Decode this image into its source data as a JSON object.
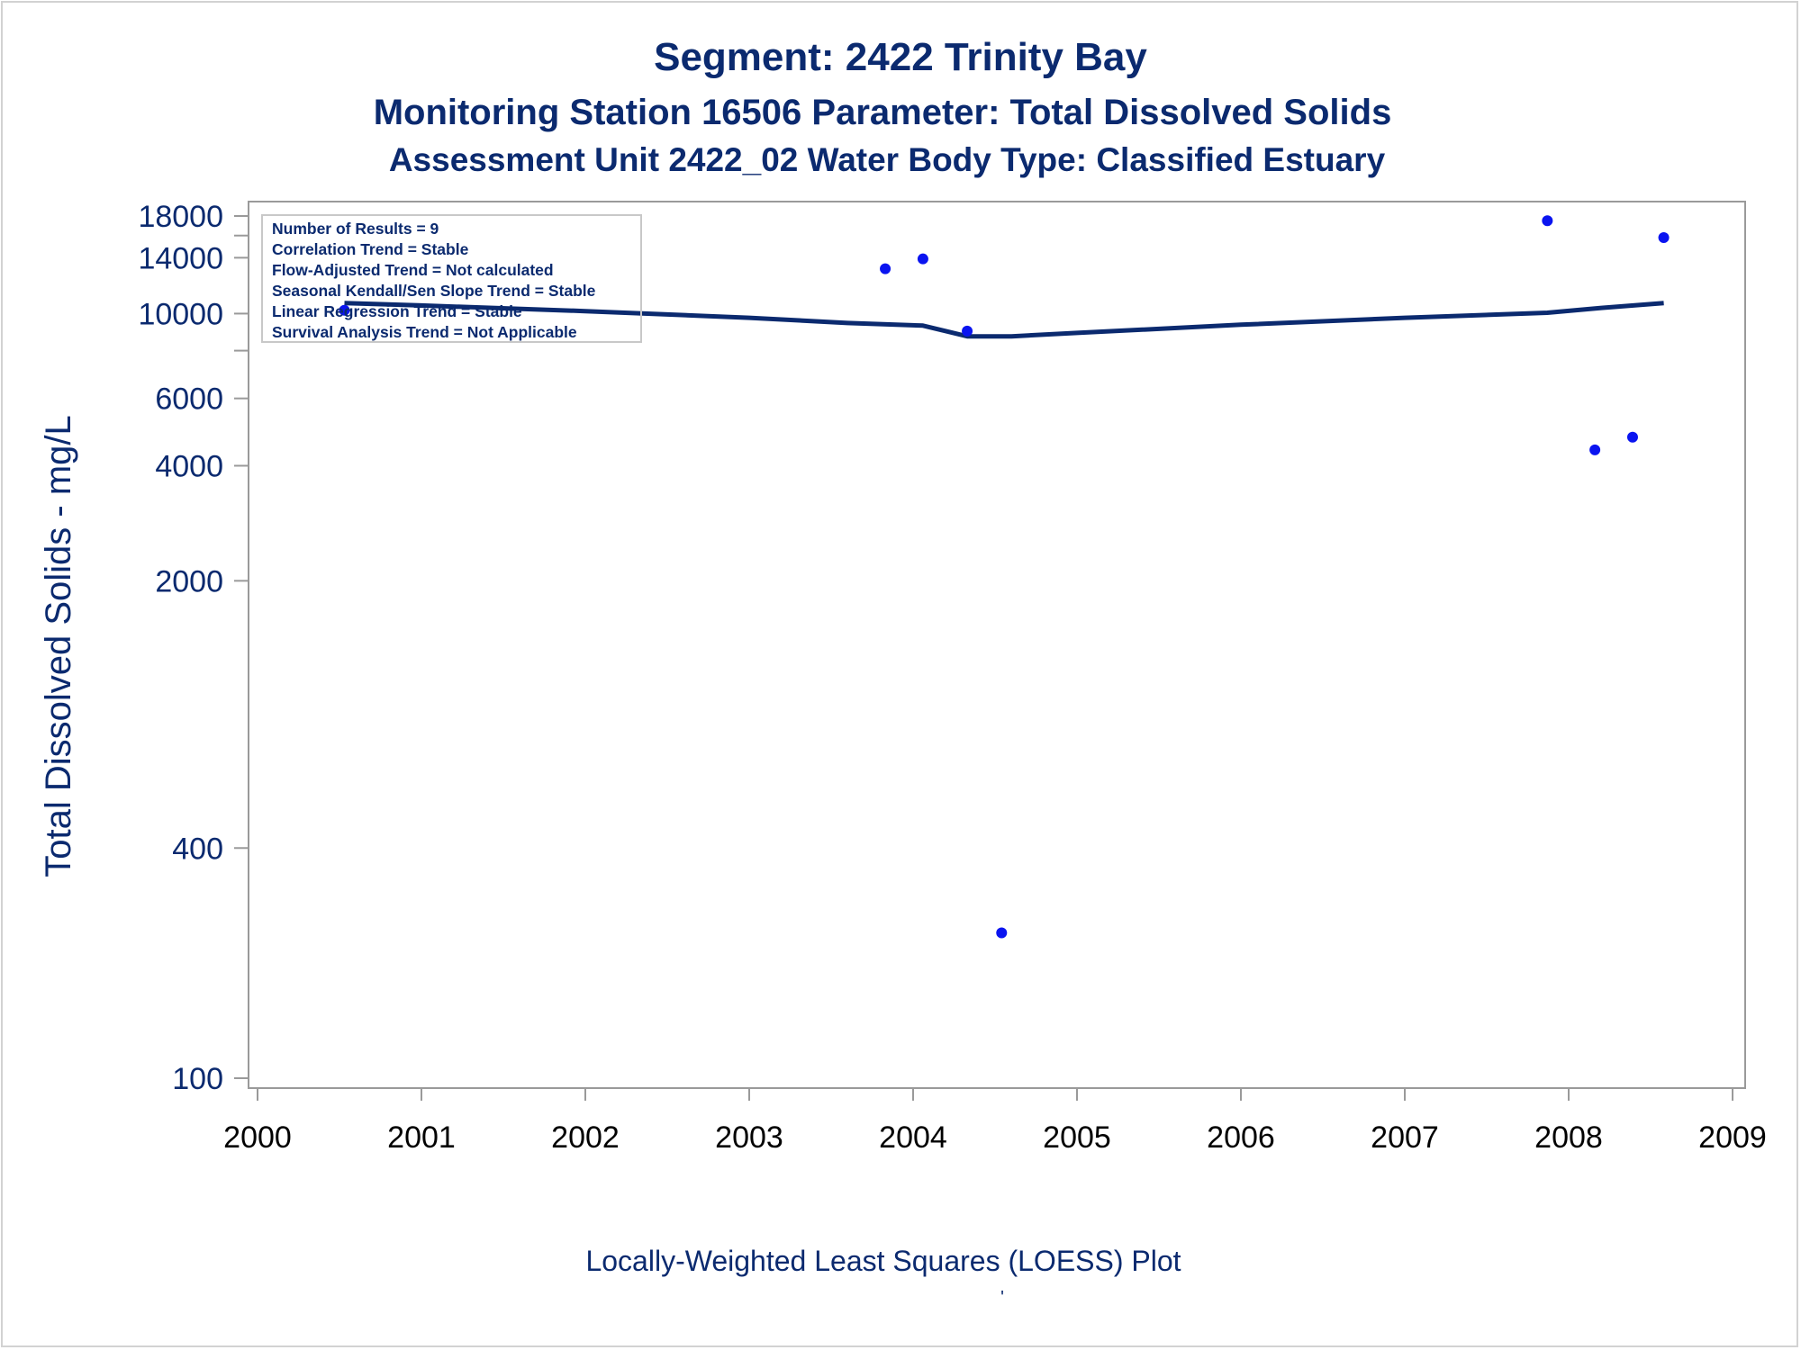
{
  "chart_data": {
    "type": "scatter",
    "title": "Segment: 2422  Trinity Bay",
    "subtitle": "Monitoring Station 16506 Parameter: Total Dissolved Solids",
    "subtitle2": "Assessment Unit 2422_02   Water Body Type: Classified Estuary",
    "ylabel": "Total Dissolved Solids - mg/L",
    "xlabel": "Locally-Weighted Least Squares (LOESS) Plot",
    "footnote": "'",
    "y_scale": "log",
    "ylim": [
      100,
      18000
    ],
    "xlim": [
      2000,
      2009
    ],
    "y_ticks": [
      100,
      400,
      2000,
      4000,
      6000,
      10000,
      14000,
      18000
    ],
    "y_minor_ticks": [
      8000,
      16000
    ],
    "x_ticks": [
      2000,
      2001,
      2002,
      2003,
      2004,
      2005,
      2006,
      2007,
      2008,
      2009
    ],
    "stats_box": [
      "Number of Results = 9",
      "Correlation Trend = Stable",
      "Flow-Adjusted Trend = Not calculated",
      "Seasonal Kendall/Sen Slope Trend = Stable",
      "Linear Regression Trend = Stable",
      "Survival Analysis Trend = Not Applicable"
    ],
    "points": [
      {
        "x": 2000.53,
        "y": 10200
      },
      {
        "x": 2003.83,
        "y": 13100
      },
      {
        "x": 2004.06,
        "y": 13900
      },
      {
        "x": 2004.33,
        "y": 9000
      },
      {
        "x": 2004.54,
        "y": 240
      },
      {
        "x": 2007.87,
        "y": 17500
      },
      {
        "x": 2008.16,
        "y": 4400
      },
      {
        "x": 2008.39,
        "y": 4750
      },
      {
        "x": 2008.58,
        "y": 15800
      }
    ],
    "loess": [
      {
        "x": 2000.53,
        "y": 10650
      },
      {
        "x": 2001.0,
        "y": 10500
      },
      {
        "x": 2002.0,
        "y": 10150
      },
      {
        "x": 2003.0,
        "y": 9750
      },
      {
        "x": 2003.6,
        "y": 9450
      },
      {
        "x": 2004.06,
        "y": 9300
      },
      {
        "x": 2004.2,
        "y": 9000
      },
      {
        "x": 2004.33,
        "y": 8720
      },
      {
        "x": 2004.6,
        "y": 8720
      },
      {
        "x": 2005.0,
        "y": 8900
      },
      {
        "x": 2006.0,
        "y": 9350
      },
      {
        "x": 2007.0,
        "y": 9750
      },
      {
        "x": 2007.87,
        "y": 10050
      },
      {
        "x": 2008.2,
        "y": 10350
      },
      {
        "x": 2008.58,
        "y": 10650
      }
    ],
    "colors": {
      "text": "#0b2a6f",
      "points": "#0a14f0",
      "line": "#0b2a6f",
      "axis": "#9a9a9a"
    },
    "grid": false
  }
}
